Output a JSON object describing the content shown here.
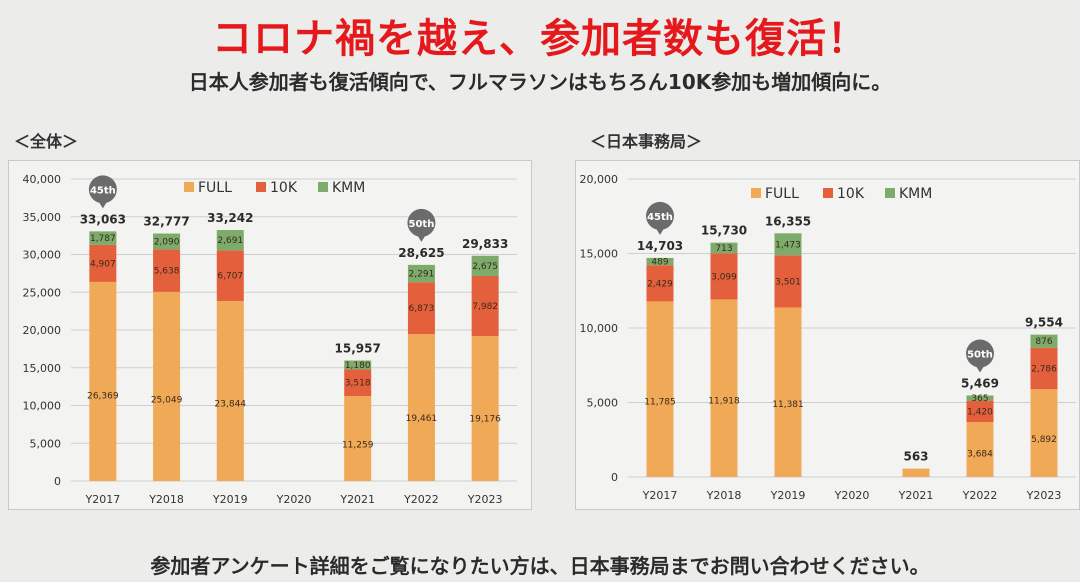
{
  "header": {
    "title": "コロナ禍を越え、参加者数も復活！",
    "subtitle": "日本人参加者も復活傾向で、フルマラソンはもちろん10K参加も増加傾向に。"
  },
  "footer": {
    "text": "参加者アンケート詳細をご覧になりたい方は、日本事務局までお問い合わせください。"
  },
  "colors": {
    "FULL": "#f0a956",
    "10K": "#e4603c",
    "KMM": "#7cab6b",
    "text": "#2b2b2b"
  },
  "chart_data": [
    {
      "section_label": "＜全体＞",
      "type": "bar",
      "stacked": true,
      "categories": [
        "Y2017",
        "Y2018",
        "Y2019",
        "Y2020",
        "Y2021",
        "Y2022",
        "Y2023"
      ],
      "series": [
        {
          "name": "FULL",
          "values": [
            26369,
            25049,
            23844,
            null,
            11259,
            19461,
            19176
          ],
          "labels": [
            "26,369",
            "25,049",
            "23,844",
            "",
            "11,259",
            "19,461",
            "19,176"
          ]
        },
        {
          "name": "10K",
          "values": [
            4907,
            5638,
            6707,
            null,
            3518,
            6873,
            7982
          ],
          "labels": [
            "4,907",
            "5,638",
            "6,707",
            "",
            "3,518",
            "6,873",
            "7,982"
          ]
        },
        {
          "name": "KMM",
          "values": [
            1787,
            2090,
            2691,
            null,
            1180,
            2291,
            2675
          ],
          "labels": [
            "1,787",
            "2,090",
            "2,691",
            "",
            "1,180",
            "2,291",
            "2,675"
          ]
        }
      ],
      "totals": [
        33063,
        32777,
        33242,
        null,
        15957,
        28625,
        29833
      ],
      "total_labels": [
        "33,063",
        "32,777",
        "33,242",
        "",
        "15,957",
        "28,625",
        "29,833"
      ],
      "ylim": [
        0,
        40000
      ],
      "yticks": [
        0,
        5000,
        10000,
        15000,
        20000,
        25000,
        30000,
        35000,
        40000
      ],
      "ytick_labels": [
        "0",
        "5,000",
        "10,000",
        "15,000",
        "20,000",
        "25,000",
        "30,000",
        "35,000",
        "40,000"
      ],
      "annotations": [
        {
          "category": "Y2017",
          "text": "45th"
        },
        {
          "category": "Y2022",
          "text": "50th"
        }
      ],
      "grid": true,
      "legend": "top"
    },
    {
      "section_label": "＜日本事務局＞",
      "type": "bar",
      "stacked": true,
      "categories": [
        "Y2017",
        "Y2018",
        "Y2019",
        "Y2020",
        "Y2021",
        "Y2022",
        "Y2023"
      ],
      "series": [
        {
          "name": "FULL",
          "values": [
            11785,
            11918,
            11381,
            null,
            563,
            3684,
            5892
          ],
          "labels": [
            "11,785",
            "11,918",
            "11,381",
            "",
            "",
            "3,684",
            "5,892"
          ]
        },
        {
          "name": "10K",
          "values": [
            2429,
            3099,
            3501,
            null,
            null,
            1420,
            2786
          ],
          "labels": [
            "2,429",
            "3,099",
            "3,501",
            "",
            "",
            "1,420",
            "2,786"
          ]
        },
        {
          "name": "KMM",
          "values": [
            489,
            713,
            1473,
            null,
            null,
            365,
            876
          ],
          "labels": [
            "489",
            "713",
            "1,473",
            "",
            "",
            "365",
            "876"
          ]
        }
      ],
      "totals": [
        14703,
        15730,
        16355,
        null,
        563,
        5469,
        9554
      ],
      "total_labels": [
        "14,703",
        "15,730",
        "16,355",
        "",
        "563",
        "5,469",
        "9,554"
      ],
      "ylim": [
        0,
        20000
      ],
      "yticks": [
        0,
        5000,
        10000,
        15000,
        20000
      ],
      "ytick_labels": [
        "0",
        "5,000",
        "10,000",
        "15,000",
        "20,000"
      ],
      "annotations": [
        {
          "category": "Y2017",
          "text": "45th"
        },
        {
          "category": "Y2022",
          "text": "50th"
        }
      ],
      "grid": true,
      "legend": "top"
    }
  ]
}
